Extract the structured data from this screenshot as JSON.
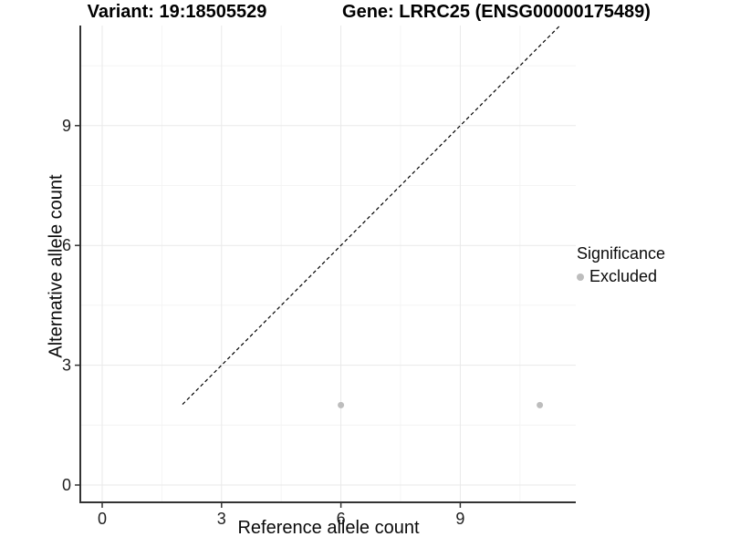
{
  "chart_data": {
    "type": "scatter",
    "title_left": "Variant: 19:18505529",
    "title_right": "Gene: LRRC25 (ENSG00000175489)",
    "xlabel": "Reference allele count",
    "ylabel": "Alternative allele count",
    "x_ticks": [
      0,
      3,
      6,
      9
    ],
    "y_ticks": [
      0,
      3,
      6,
      9
    ],
    "x_minor_gridlines": [
      1.5,
      4.5,
      7.5,
      10.5
    ],
    "y_minor_gridlines": [
      1.5,
      4.5,
      7.5,
      10.5
    ],
    "xlim": [
      -0.55,
      11.9
    ],
    "ylim": [
      -0.43,
      11.5
    ],
    "grid": true,
    "reference_line": {
      "type": "identity",
      "slope": 1,
      "intercept": 0,
      "style": "dashed",
      "color": "#000000"
    },
    "series": [
      {
        "name": "Excluded",
        "color": "#bdbdbd",
        "points": [
          {
            "x": 6,
            "y": 2
          },
          {
            "x": 11,
            "y": 2
          }
        ]
      }
    ],
    "legend": {
      "title": "Significance",
      "position": "right",
      "items": [
        {
          "label": "Excluded",
          "color": "#bdbdbd"
        }
      ]
    }
  },
  "colors": {
    "axis_line": "#333333",
    "tick_text": "#1f1f1f",
    "grid_major": "#e9e9e9",
    "grid_minor": "#f4f4f4",
    "point": "#bdbdbd"
  }
}
